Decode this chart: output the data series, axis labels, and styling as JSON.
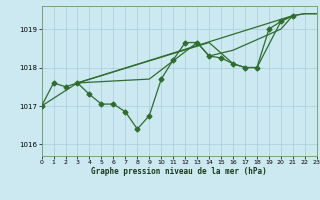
{
  "xlabel": "Graphe pression niveau de la mer (hPa)",
  "background_color": "#cce8f0",
  "grid_color": "#aaccd8",
  "line_color": "#2d6e2d",
  "x_min": 0,
  "x_max": 23,
  "y_min": 1015.7,
  "y_max": 1019.6,
  "yticks": [
    1016,
    1017,
    1018,
    1019
  ],
  "xticks": [
    0,
    1,
    2,
    3,
    4,
    5,
    6,
    7,
    8,
    9,
    10,
    11,
    12,
    13,
    14,
    15,
    16,
    17,
    18,
    19,
    20,
    21,
    22,
    23
  ],
  "series1_x": [
    0,
    1,
    2,
    3,
    4,
    5,
    6,
    7,
    8,
    9,
    10,
    11,
    12,
    13,
    14,
    15,
    16,
    17,
    18,
    19,
    20,
    21
  ],
  "series1_y": [
    1017.0,
    1017.6,
    1017.5,
    1017.6,
    1017.3,
    1017.05,
    1017.05,
    1016.85,
    1016.4,
    1016.75,
    1017.7,
    1018.2,
    1018.65,
    1018.65,
    1018.3,
    1018.25,
    1018.1,
    1018.0,
    1018.0,
    1019.0,
    1019.2,
    1019.35
  ],
  "series2_x": [
    0,
    3,
    21,
    22,
    23
  ],
  "series2_y": [
    1017.0,
    1017.6,
    1019.35,
    1019.4,
    1019.4
  ],
  "series3_x": [
    3,
    9,
    13,
    14,
    16,
    20,
    21,
    22,
    23
  ],
  "series3_y": [
    1017.6,
    1017.7,
    1018.65,
    1018.3,
    1018.45,
    1019.0,
    1019.35,
    1019.4,
    1019.4
  ],
  "series4_x": [
    3,
    14,
    16,
    17,
    18,
    20,
    21
  ],
  "series4_y": [
    1017.6,
    1018.65,
    1018.1,
    1018.0,
    1018.0,
    1019.2,
    1019.35
  ]
}
